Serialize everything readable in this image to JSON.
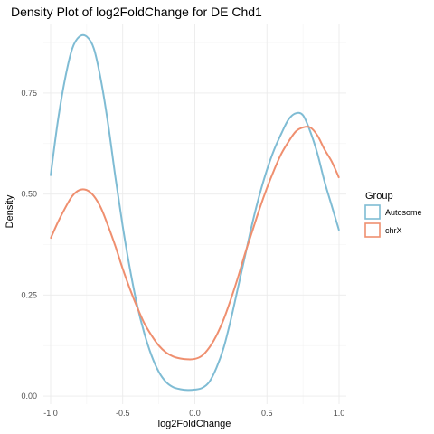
{
  "chart_data": {
    "type": "line",
    "title": "Density Plot of log2FoldChange for DE Chd1",
    "xlabel": "log2FoldChange",
    "ylabel": "Density",
    "xlim": [
      -1.05,
      1.05
    ],
    "ylim": [
      -0.02,
      0.92
    ],
    "x_ticks": [
      -1.0,
      -0.5,
      0.0,
      0.5,
      1.0
    ],
    "x_tick_labels": [
      "-1.0",
      "-0.5",
      "0.0",
      "0.5",
      "1.0"
    ],
    "y_ticks": [
      0.0,
      0.25,
      0.5,
      0.75
    ],
    "y_tick_labels": [
      "0.00",
      "0.25",
      "0.50",
      "0.75"
    ],
    "grid": true,
    "legend": {
      "title": "Group",
      "position": "right"
    },
    "series": [
      {
        "name": "Autosome",
        "color": "#7fbcd4",
        "x": [
          -1.0,
          -0.95,
          -0.9,
          -0.85,
          -0.8,
          -0.75,
          -0.7,
          -0.65,
          -0.6,
          -0.55,
          -0.5,
          -0.45,
          -0.4,
          -0.35,
          -0.3,
          -0.25,
          -0.2,
          -0.15,
          -0.1,
          -0.05,
          0.0,
          0.05,
          0.1,
          0.15,
          0.2,
          0.25,
          0.3,
          0.35,
          0.4,
          0.45,
          0.5,
          0.55,
          0.6,
          0.65,
          0.7,
          0.75,
          0.8,
          0.85,
          0.9,
          0.95,
          1.0
        ],
        "y": [
          0.545,
          0.68,
          0.785,
          0.86,
          0.89,
          0.89,
          0.86,
          0.78,
          0.67,
          0.54,
          0.42,
          0.315,
          0.225,
          0.155,
          0.1,
          0.06,
          0.035,
          0.022,
          0.017,
          0.015,
          0.016,
          0.02,
          0.035,
          0.07,
          0.12,
          0.19,
          0.27,
          0.35,
          0.43,
          0.5,
          0.56,
          0.61,
          0.65,
          0.685,
          0.7,
          0.695,
          0.655,
          0.6,
          0.53,
          0.47,
          0.41
        ]
      },
      {
        "name": "chrX",
        "color": "#ef8f6f",
        "x": [
          -1.0,
          -0.95,
          -0.9,
          -0.85,
          -0.8,
          -0.75,
          -0.7,
          -0.65,
          -0.6,
          -0.55,
          -0.5,
          -0.45,
          -0.4,
          -0.35,
          -0.3,
          -0.25,
          -0.2,
          -0.15,
          -0.1,
          -0.05,
          0.0,
          0.05,
          0.1,
          0.15,
          0.2,
          0.25,
          0.3,
          0.35,
          0.4,
          0.45,
          0.5,
          0.55,
          0.6,
          0.65,
          0.7,
          0.75,
          0.8,
          0.85,
          0.9,
          0.95,
          1.0
        ],
        "y": [
          0.39,
          0.43,
          0.465,
          0.495,
          0.51,
          0.51,
          0.495,
          0.465,
          0.42,
          0.37,
          0.315,
          0.265,
          0.22,
          0.18,
          0.15,
          0.125,
          0.108,
          0.098,
          0.093,
          0.091,
          0.092,
          0.1,
          0.12,
          0.15,
          0.19,
          0.24,
          0.295,
          0.355,
          0.41,
          0.465,
          0.515,
          0.56,
          0.6,
          0.63,
          0.655,
          0.665,
          0.665,
          0.645,
          0.61,
          0.58,
          0.54
        ]
      }
    ]
  }
}
